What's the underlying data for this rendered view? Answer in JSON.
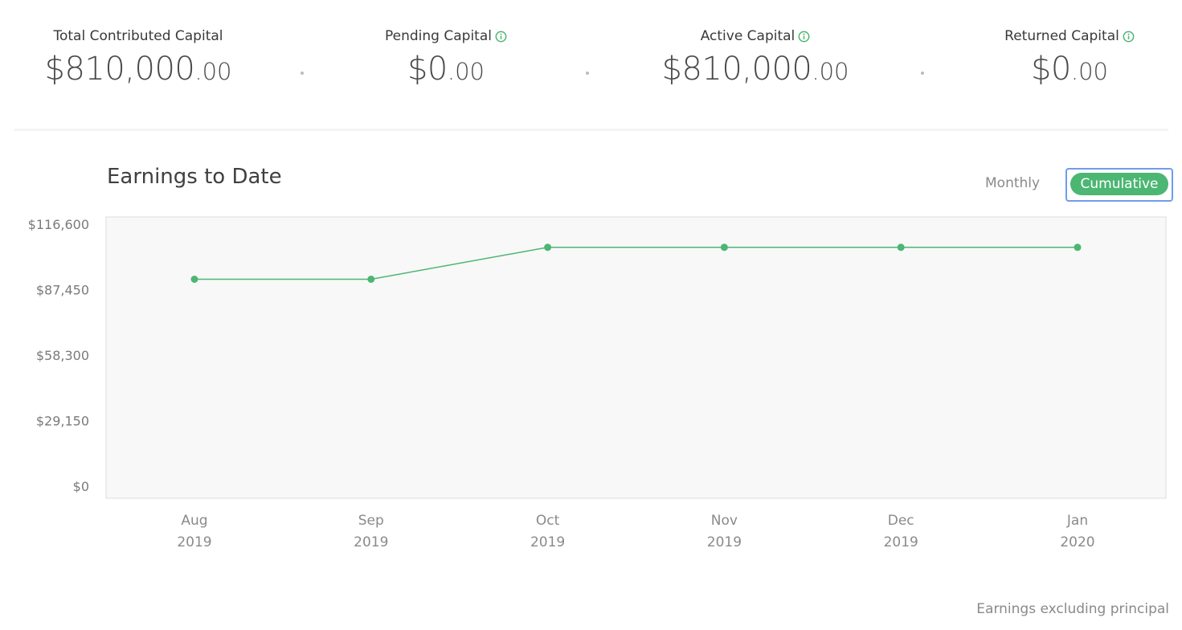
{
  "summary": {
    "stats": [
      {
        "label": "Total Contributed Capital",
        "dollars": "$810,000",
        "cents": ".00",
        "info": false
      },
      {
        "label": "Pending Capital",
        "dollars": "$0",
        "cents": ".00",
        "info": true
      },
      {
        "label": "Active Capital",
        "dollars": "$810,000",
        "cents": ".00",
        "info": true
      },
      {
        "label": "Returned Capital",
        "dollars": "$0",
        "cents": ".00",
        "info": true
      }
    ]
  },
  "chart_section": {
    "title": "Earnings to Date",
    "toggle": {
      "monthly_label": "Monthly",
      "cumulative_label": "Cumulative",
      "selected": "Cumulative"
    },
    "footnote": "Earnings excluding principal"
  },
  "colors": {
    "accent_green": "#4cb673",
    "line_green": "#4cb673",
    "focus_ring": "#6f9cec",
    "plot_background": "#f8f8f8"
  },
  "icons": {
    "info": "info-circle-icon"
  },
  "chart_data": {
    "type": "line",
    "title": "Earnings to Date",
    "categories": [
      "Aug 2019",
      "Sep 2019",
      "Oct 2019",
      "Nov 2019",
      "Dec 2019",
      "Jan 2020"
    ],
    "category_lines": [
      [
        "Aug",
        "2019"
      ],
      [
        "Sep",
        "2019"
      ],
      [
        "Oct",
        "2019"
      ],
      [
        "Nov",
        "2019"
      ],
      [
        "Dec",
        "2019"
      ],
      [
        "Jan",
        "2020"
      ]
    ],
    "series": [
      {
        "values": [
          92100,
          92100,
          106300,
          106300,
          106300,
          106300
        ]
      }
    ],
    "y_ticks": [
      0,
      29150,
      58300,
      87450,
      116600
    ],
    "y_tick_labels": [
      "$0",
      "$29,150",
      "$58,300",
      "$87,450",
      "$116,600"
    ],
    "ylim": [
      0,
      116600
    ],
    "grid": false,
    "legend": "none"
  }
}
